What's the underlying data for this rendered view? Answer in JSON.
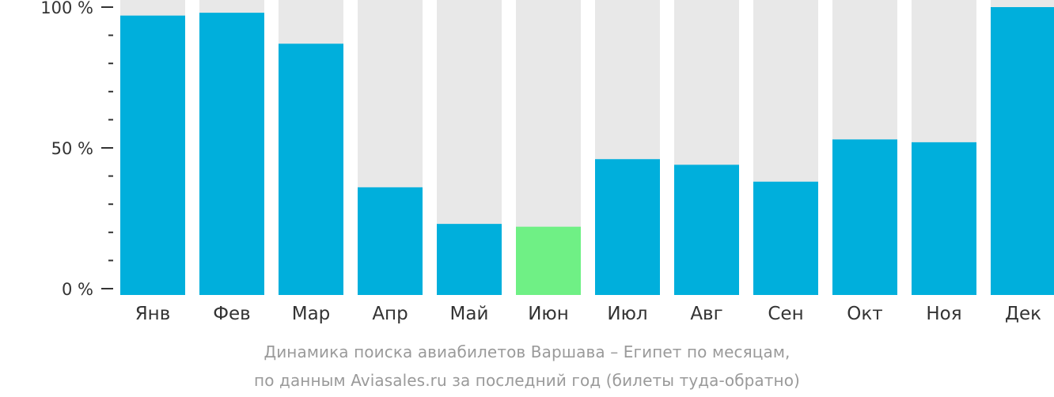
{
  "colors": {
    "bar": "#00afdc",
    "highlight": "#6ff085",
    "track": "#e8e8e8",
    "axis": "#333333",
    "text": "#333333",
    "caption": "#9a9a9a"
  },
  "chart_data": {
    "type": "bar",
    "categories": [
      "Янв",
      "Фев",
      "Мар",
      "Апр",
      "Май",
      "Июн",
      "Июл",
      "Авг",
      "Сен",
      "Окт",
      "Ноя",
      "Дек"
    ],
    "series": [
      {
        "values": [
          97,
          98,
          87,
          36,
          23,
          22,
          46,
          44,
          38,
          53,
          52,
          100
        ],
        "highlight_category": "Июн"
      }
    ],
    "y_ticks": [
      "0 %",
      "50 %",
      "100 %"
    ],
    "ylim": [
      0,
      100
    ],
    "unit": "%",
    "grid": false,
    "legend": "none",
    "caption_lines": [
      "Динамика поиска авиабилетов Варшава – Египет по месяцам,",
      "по данным Aviasales.ru за последний год (билеты туда-обратно)"
    ]
  }
}
